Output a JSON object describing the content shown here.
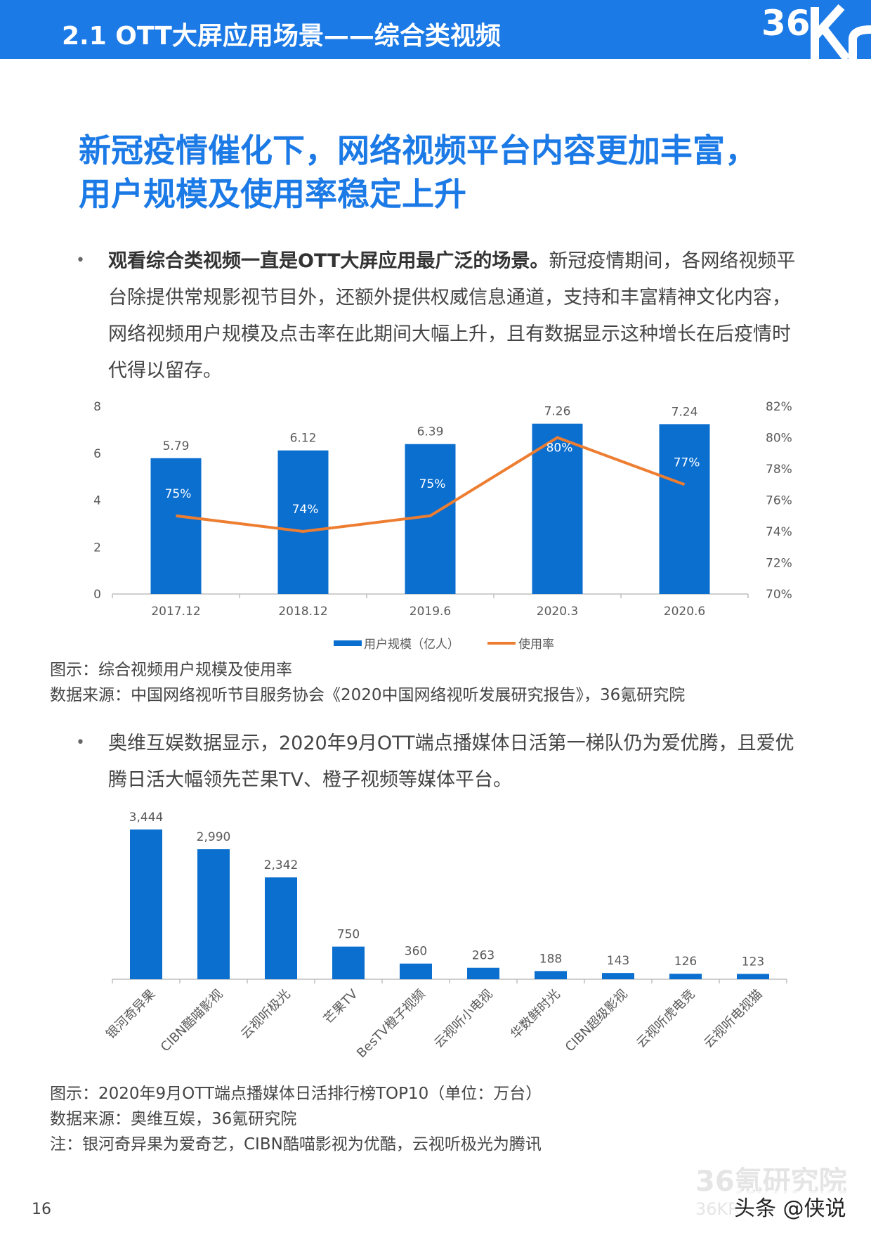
{
  "header": {
    "title": "2.1 OTT大屏应用场景——综合类视频",
    "logo_text": "36Kr",
    "bar_color": "#1c7ae6"
  },
  "headline": {
    "line1": "新冠疫情催化下，网络视频平台内容更加丰富，",
    "line2": "用户规模及使用率稳定上升"
  },
  "bullet1": {
    "bold": "观看综合类视频一直是OTT大屏应用最广泛的场景。",
    "text": "新冠疫情期间，各网络视频平台除提供常规影视节目外，还额外提供权威信息通道，支持和丰富精神文化内容，网络视频用户规模及点击率在此期间大幅上升，且有数据显示这种增长在后疫情时代得以留存。"
  },
  "chart1": {
    "type": "bar+line",
    "categories": [
      "2017.12",
      "2018.12",
      "2019.6",
      "2020.3",
      "2020.6"
    ],
    "bar_series": {
      "name": "用户规模（亿人）",
      "values": [
        5.79,
        6.12,
        6.39,
        7.26,
        7.24
      ],
      "labels": [
        "5.79",
        "6.12",
        "6.39",
        "7.26",
        "7.24"
      ],
      "color": "#0b6fcf"
    },
    "line_series": {
      "name": "使用率",
      "values": [
        75,
        74,
        75,
        80,
        77
      ],
      "labels": [
        "75%",
        "74%",
        "75%",
        "80%",
        "77%"
      ],
      "color": "#ed7d31"
    },
    "y_left": {
      "min": 0,
      "max": 8,
      "ticks": [
        "0",
        "2",
        "4",
        "6",
        "8"
      ]
    },
    "y_right": {
      "min": 70,
      "max": 82,
      "ticks": [
        "70%",
        "72%",
        "74%",
        "76%",
        "78%",
        "80%",
        "82%"
      ]
    },
    "legend_position": "bottom"
  },
  "caption1": {
    "figure": "图示：综合视频用户规模及使用率",
    "source": "数据来源：中国网络视听节目服务协会《2020中国网络视听发展研究报告》，36氪研究院"
  },
  "bullet2": {
    "text": "奥维互娱数据显示，2020年9月OTT端点播媒体日活第一梯队仍为爱优腾，且爱优腾日活大幅领先芒果TV、橙子视频等媒体平台。"
  },
  "chart2": {
    "type": "bar",
    "categories": [
      "银河奇异果",
      "CIBN酷喵影视",
      "云视听极光",
      "芒果TV",
      "BesTV橙子视频",
      "云视听小电视",
      "华数鲜时光",
      "CIBN超级影视",
      "云视听虎电竞",
      "云视听电视猫"
    ],
    "values": [
      3444,
      2990,
      2342,
      750,
      360,
      263,
      188,
      143,
      126,
      123
    ],
    "labels": [
      "3,444",
      "2,990",
      "2,342",
      "750",
      "360",
      "263",
      "188",
      "143",
      "126",
      "123"
    ],
    "color": "#0b6fcf",
    "ylim": [
      0,
      3444
    ]
  },
  "caption2": {
    "figure": "图示：2020年9月OTT端点播媒体日活排行榜TOP10（单位：万台）",
    "source": "数据来源：奥维互娱，36氪研究院",
    "note": "注：银河奇异果为爱奇艺，CIBN酷喵影视为优酷，云视听极光为腾讯"
  },
  "footer": {
    "watermark": "36氪研究院",
    "watermark_sub": "36KR",
    "tag": "头条 @侠说",
    "page_number": "16"
  }
}
